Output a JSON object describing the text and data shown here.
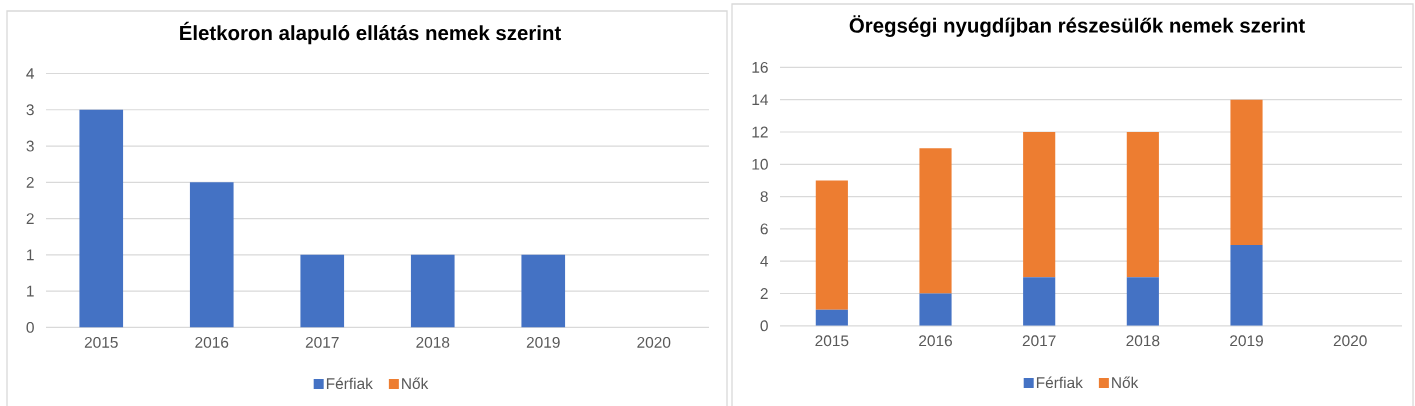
{
  "chart_data": [
    {
      "type": "bar",
      "title": "Életkoron alapuló ellátás nemek szerint",
      "categories": [
        "2015",
        "2016",
        "2017",
        "2018",
        "2019",
        "2020"
      ],
      "series": [
        {
          "name": "Férfiak",
          "color": "#4472c4",
          "values": [
            3,
            2,
            1,
            1,
            1,
            null
          ]
        },
        {
          "name": "Nők",
          "color": "#ed7d31",
          "values": [
            null,
            null,
            null,
            null,
            null,
            null
          ]
        }
      ],
      "stacked": true,
      "ylim": [
        0,
        3.5
      ],
      "yticks": [
        0,
        {
          "value": 0.5,
          "label": "1"
        },
        1,
        {
          "value": 1.5,
          "label": "2"
        },
        2,
        {
          "value": 2.5,
          "label": "3"
        },
        3,
        {
          "value": 3.5,
          "label": "4"
        }
      ],
      "grid": "y",
      "legend": "bottom"
    },
    {
      "type": "bar",
      "title": "Öregségi nyugdíjban részesülők nemek szerint",
      "categories": [
        "2015",
        "2016",
        "2017",
        "2018",
        "2019",
        "2020"
      ],
      "series": [
        {
          "name": "Férfiak",
          "color": "#4472c4",
          "values": [
            1,
            2,
            3,
            3,
            5,
            null
          ]
        },
        {
          "name": "Nők",
          "color": "#ed7d31",
          "values": [
            8,
            9,
            9,
            9,
            9,
            null
          ]
        }
      ],
      "stacked": true,
      "ylim": [
        0,
        16
      ],
      "yticks": [
        0,
        2,
        4,
        6,
        8,
        10,
        12,
        14,
        16
      ],
      "grid": "y",
      "legend": "bottom"
    }
  ]
}
